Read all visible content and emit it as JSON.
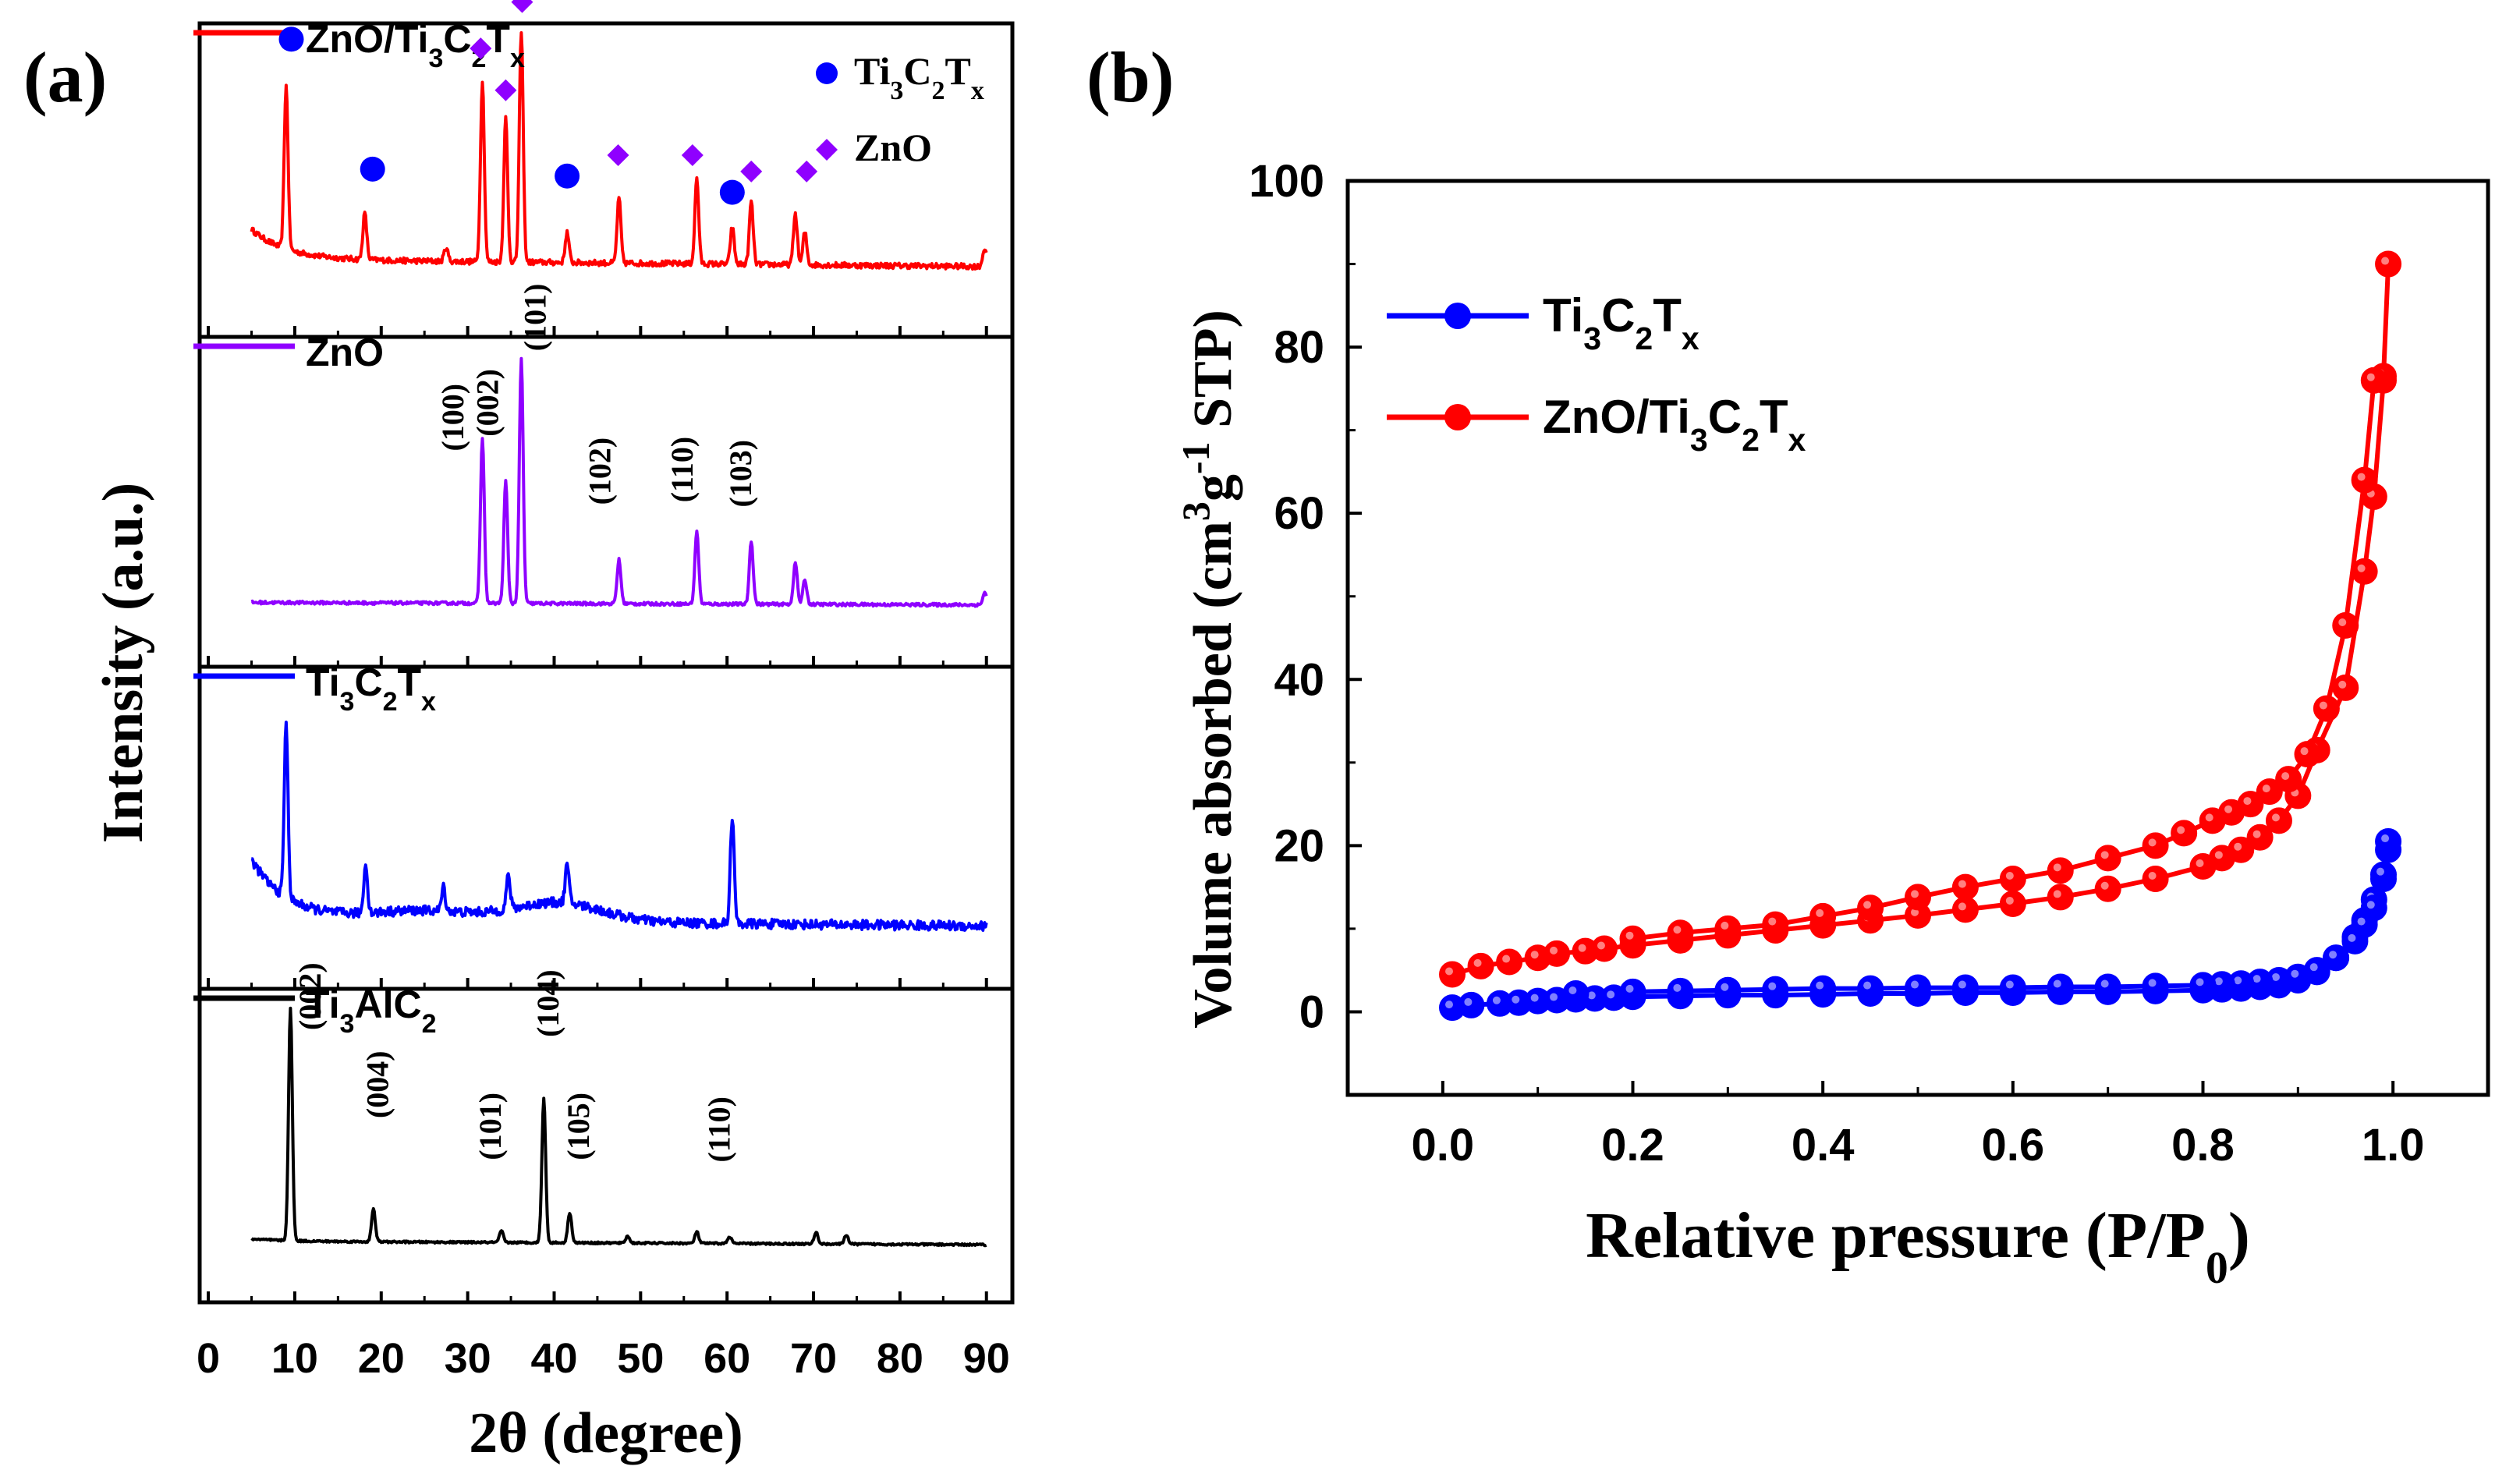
{
  "chart_data": [
    {
      "panel": "(a)",
      "type": "line",
      "xlabel": "2θ (degree)",
      "ylabel": "Intensity (a.u.)",
      "xlim": [
        -1,
        93
      ],
      "xticks": [
        0,
        10,
        20,
        30,
        40,
        50,
        60,
        70,
        80,
        90
      ],
      "colors": {
        "ZnO/Ti3C2Tx": "#ff0000",
        "ZnO": "#8f00ff",
        "Ti3C2Tx": "#0000ff",
        "Ti3AlC2": "#000000"
      },
      "panels": [
        {
          "name": "ZnO/Ti3C2Tx",
          "label": "ZnO/Ti3C2Tx",
          "baseline": 0.09,
          "end": 0.06,
          "start_level": 0.22,
          "noise": 0.012,
          "peaks": [
            [
              9.0,
              0.7
            ],
            [
              18.1,
              0.2
            ],
            [
              27.5,
              0.06
            ],
            [
              31.7,
              0.78
            ],
            [
              34.4,
              0.62
            ],
            [
              36.2,
              1.0
            ],
            [
              41.5,
              0.13
            ],
            [
              47.5,
              0.28
            ],
            [
              56.5,
              0.37
            ],
            [
              60.6,
              0.16
            ],
            [
              62.8,
              0.27
            ],
            [
              67.9,
              0.22
            ],
            [
              69.0,
              0.14
            ],
            [
              89.8,
              0.08
            ]
          ],
          "legend": [
            {
              "marker": "circle",
              "text": "Ti3C2Tx",
              "color": "#0000ff"
            },
            {
              "marker": "diamond",
              "text": "ZnO",
              "color": "#8f00ff"
            }
          ],
          "markers": [
            {
              "type": "circle",
              "x": 9.6,
              "y": 1.04
            },
            {
              "type": "circle",
              "x": 19.0,
              "y": 0.48
            },
            {
              "type": "circle",
              "x": 41.5,
              "y": 0.45
            },
            {
              "type": "circle",
              "x": 60.6,
              "y": 0.38
            },
            {
              "type": "diamond",
              "x": 31.5,
              "y": 1.0
            },
            {
              "type": "diamond",
              "x": 34.4,
              "y": 0.82
            },
            {
              "type": "diamond",
              "x": 36.3,
              "y": 1.2
            },
            {
              "type": "diamond",
              "x": 47.4,
              "y": 0.54
            },
            {
              "type": "diamond",
              "x": 56.0,
              "y": 0.54
            },
            {
              "type": "diamond",
              "x": 62.8,
              "y": 0.47
            },
            {
              "type": "diamond",
              "x": 69.2,
              "y": 0.47
            }
          ]
        },
        {
          "name": "ZnO",
          "label": "ZnO",
          "baseline": 0.02,
          "end": 0.01,
          "start_level": 0.02,
          "noise": 0.006,
          "peaks": [
            [
              31.7,
              0.68
            ],
            [
              34.4,
              0.5
            ],
            [
              36.2,
              1.0
            ],
            [
              47.5,
              0.18
            ],
            [
              56.5,
              0.3
            ],
            [
              62.8,
              0.26
            ],
            [
              67.9,
              0.17
            ],
            [
              69.0,
              0.1
            ],
            [
              89.8,
              0.05
            ]
          ],
          "hkl": [
            {
              "text": "(100)",
              "x": 29.5,
              "y": 0.64
            },
            {
              "text": "(002)",
              "x": 33.5,
              "y": 0.7
            },
            {
              "text": "(101)",
              "x": 39.0,
              "y": 1.05
            },
            {
              "text": "(102)",
              "x": 46.5,
              "y": 0.42
            },
            {
              "text": "(110)",
              "x": 56.0,
              "y": 0.43
            },
            {
              "text": "(103)",
              "x": 62.8,
              "y": 0.41
            }
          ]
        },
        {
          "name": "Ti3C2Tx",
          "label": "Ti3C2Tx",
          "baseline": 0.05,
          "end": 0.02,
          "start_level": 0.3,
          "noise": 0.02,
          "peaks": [
            [
              9.0,
              0.72
            ],
            [
              18.2,
              0.2
            ],
            [
              27.2,
              0.1
            ],
            [
              34.7,
              0.14
            ],
            [
              41.5,
              0.16
            ],
            [
              60.6,
              0.45
            ]
          ],
          "broad": [
            [
              40.5,
              5.0,
              0.08
            ],
            [
              25.0,
              6.0,
              0.04
            ]
          ]
        },
        {
          "name": "Ti3AlC2",
          "label": "Ti3AlC2",
          "baseline": 0.02,
          "end": 0.005,
          "start_level": 0.03,
          "noise": 0.004,
          "peaks": [
            [
              9.5,
              1.0
            ],
            [
              19.1,
              0.14
            ],
            [
              33.9,
              0.05
            ],
            [
              38.8,
              0.62
            ],
            [
              41.8,
              0.13
            ],
            [
              48.5,
              0.03
            ],
            [
              56.5,
              0.05
            ],
            [
              60.3,
              0.03
            ],
            [
              70.3,
              0.05
            ],
            [
              73.8,
              0.04
            ]
          ],
          "hkl": [
            {
              "text": "(002)",
              "x": 13.0,
              "y": 0.93
            },
            {
              "text": "(004)",
              "x": 20.8,
              "y": 0.55
            },
            {
              "text": "(101)",
              "x": 33.8,
              "y": 0.37
            },
            {
              "text": "(104)",
              "x": 40.5,
              "y": 0.9
            },
            {
              "text": "(105)",
              "x": 44.0,
              "y": 0.37
            },
            {
              "text": "(110)",
              "x": 60.3,
              "y": 0.36
            }
          ]
        }
      ]
    },
    {
      "panel": "(b)",
      "type": "line",
      "xlabel": "Relative pressure (P/P0)",
      "ylabel": "Volume absorbed (cm3g-1 STP)",
      "xlim": [
        -0.1,
        1.1
      ],
      "ylim": [
        -10,
        100
      ],
      "xticks": [
        0.0,
        0.2,
        0.4,
        0.6,
        0.8,
        1.0
      ],
      "yticks": [
        0,
        20,
        40,
        60,
        80,
        100
      ],
      "series": [
        {
          "name": "Ti3C2Tx",
          "color": "#0000ff",
          "adsorption": {
            "x": [
              0.01,
              0.03,
              0.06,
              0.08,
              0.1,
              0.12,
              0.14,
              0.16,
              0.18,
              0.2,
              0.25,
              0.3,
              0.35,
              0.4,
              0.45,
              0.5,
              0.55,
              0.6,
              0.65,
              0.7,
              0.75,
              0.8,
              0.82,
              0.84,
              0.86,
              0.88,
              0.9,
              0.92,
              0.94,
              0.96,
              0.97,
              0.98,
              0.99,
              0.995
            ],
            "y": [
              0.5,
              0.8,
              1.0,
              1.1,
              1.3,
              1.4,
              1.5,
              1.6,
              1.7,
              1.8,
              1.9,
              2.0,
              2.0,
              2.1,
              2.2,
              2.2,
              2.3,
              2.3,
              2.4,
              2.4,
              2.5,
              2.6,
              2.7,
              2.8,
              3.0,
              3.2,
              3.8,
              4.8,
              6.5,
              9.0,
              11.0,
              13.5,
              16.0,
              19.5
            ]
          },
          "desorption": {
            "x": [
              0.995,
              0.99,
              0.98,
              0.97,
              0.96,
              0.94,
              0.92,
              0.9,
              0.88,
              0.86,
              0.84,
              0.82,
              0.8,
              0.75,
              0.7,
              0.65,
              0.6,
              0.55,
              0.5,
              0.45,
              0.4,
              0.35,
              0.3,
              0.25,
              0.2,
              0.14
            ],
            "y": [
              20.5,
              16.5,
              12.5,
              10.5,
              8.5,
              6.5,
              5.0,
              4.2,
              3.8,
              3.6,
              3.4,
              3.3,
              3.2,
              3.1,
              3.0,
              3.0,
              2.9,
              2.9,
              2.9,
              2.8,
              2.8,
              2.7,
              2.6,
              2.5,
              2.4,
              2.2
            ]
          }
        },
        {
          "name": "ZnO/Ti3C2Tx",
          "color": "#ff0000",
          "adsorption": {
            "x": [
              0.01,
              0.04,
              0.07,
              0.1,
              0.12,
              0.15,
              0.17,
              0.2,
              0.25,
              0.3,
              0.35,
              0.4,
              0.45,
              0.5,
              0.55,
              0.6,
              0.65,
              0.7,
              0.75,
              0.8,
              0.82,
              0.84,
              0.86,
              0.88,
              0.9,
              0.92,
              0.95,
              0.97,
              0.98,
              0.99
            ],
            "y": [
              4.5,
              5.5,
              6.0,
              6.5,
              7.0,
              7.3,
              7.6,
              8.0,
              8.6,
              9.2,
              9.8,
              10.4,
              11.0,
              11.6,
              12.3,
              13.0,
              13.8,
              14.8,
              16.0,
              17.5,
              18.5,
              19.5,
              21.0,
              23.0,
              26.0,
              31.5,
              39.0,
              53.0,
              62.0,
              76.0
            ]
          },
          "desorption": {
            "x": [
              0.995,
              0.99,
              0.98,
              0.97,
              0.95,
              0.93,
              0.91,
              0.89,
              0.87,
              0.85,
              0.83,
              0.81,
              0.78,
              0.75,
              0.7,
              0.65,
              0.6,
              0.55,
              0.5,
              0.45,
              0.4,
              0.35,
              0.3,
              0.25,
              0.2
            ],
            "y": [
              90.0,
              76.5,
              76.0,
              64.0,
              46.5,
              36.5,
              31.0,
              28.0,
              26.5,
              25.0,
              24.0,
              23.0,
              21.5,
              20.0,
              18.5,
              17.0,
              16.0,
              15.0,
              13.8,
              12.5,
              11.5,
              10.5,
              10.0,
              9.5,
              8.8
            ]
          }
        }
      ]
    }
  ]
}
